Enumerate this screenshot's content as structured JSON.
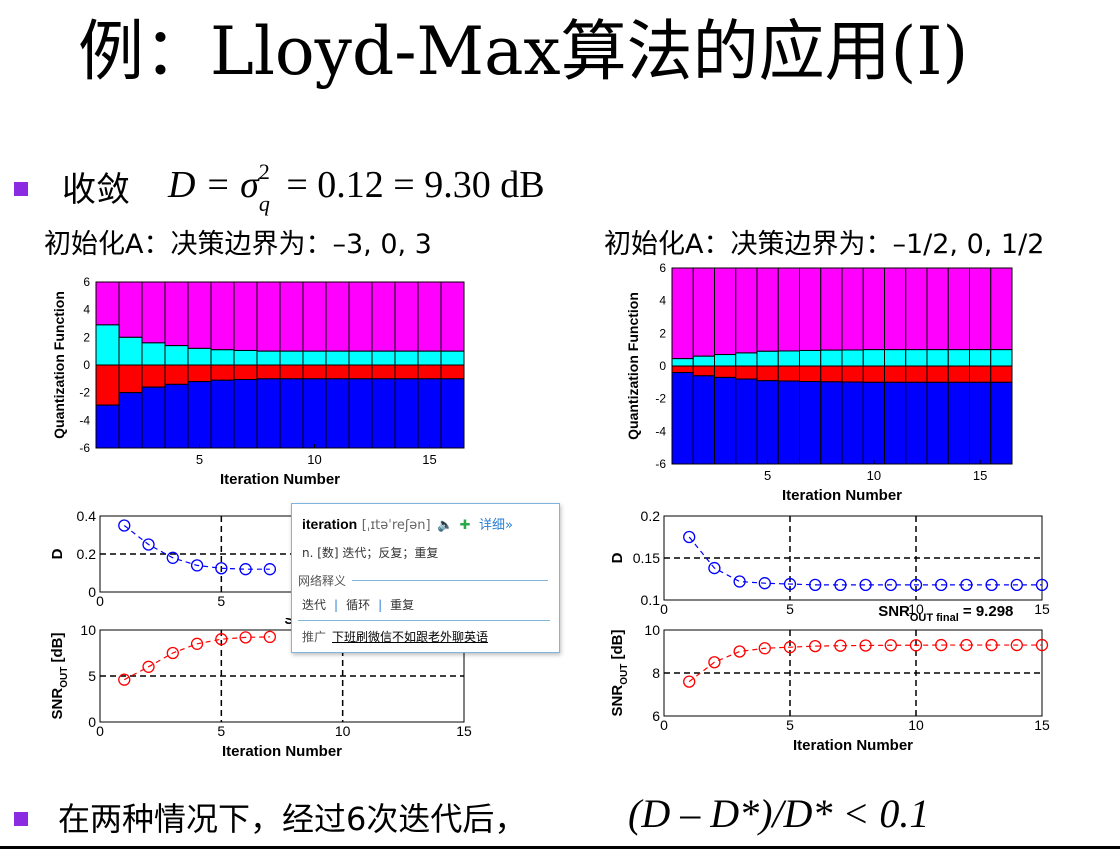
{
  "slide": {
    "title": "例：Lloyd-Max算法的应用(I)",
    "bullet1_prefix": "收敛",
    "bullet1_formula": "D = σ",
    "bullet1_rest": " = 0.12 = 9.30 dB",
    "bullet1_sup": "2",
    "bullet1_sub": "q",
    "left_caption": "初始化A：决策边界为：–3, 0, 3",
    "right_caption": "初始化A：决策边界为：–1/2, 0, 1/2",
    "bullet2_text": "在两种情况下，经过6次迭代后，",
    "bullet2_formula": "(D – D*)/D* < 0.1"
  },
  "colors": {
    "magenta": "#ff00ff",
    "cyan": "#00ffff",
    "red": "#ff0000",
    "blue": "#0000ff",
    "bullet": "#8a2be2"
  },
  "chart_data": [
    {
      "type": "stacked-bar",
      "name": "left-quantization",
      "ylabel": "Quantization Function",
      "xlabel": "Iteration Number",
      "xticks": [
        "5",
        "10",
        "15"
      ],
      "yticks": [
        "6",
        "4",
        "2",
        "0",
        "-2",
        "-4",
        "-6"
      ],
      "ylim": [
        -6,
        6
      ],
      "iterations": 16,
      "levels_top": [
        6,
        6,
        6,
        6,
        6,
        6,
        6,
        6,
        6,
        6,
        6,
        6,
        6,
        6,
        6,
        6
      ],
      "levels_upper": [
        2.9,
        2.0,
        1.6,
        1.4,
        1.2,
        1.1,
        1.05,
        1.0,
        1.0,
        1.0,
        1.0,
        1.0,
        1.0,
        1.0,
        1.0,
        1.0
      ],
      "levels_lower": [
        -2.9,
        -2.0,
        -1.6,
        -1.4,
        -1.2,
        -1.1,
        -1.05,
        -1.0,
        -1.0,
        -1.0,
        -1.0,
        -1.0,
        -1.0,
        -1.0,
        -1.0,
        -1.0
      ],
      "levels_bottom": [
        -6,
        -6,
        -6,
        -6,
        -6,
        -6,
        -6,
        -6,
        -6,
        -6,
        -6,
        -6,
        -6,
        -6,
        -6,
        -6
      ]
    },
    {
      "type": "stacked-bar",
      "name": "right-quantization",
      "ylabel": "Quantization Function",
      "xlabel": "Iteration Number",
      "xticks": [
        "5",
        "10",
        "15"
      ],
      "yticks": [
        "6",
        "4",
        "2",
        "0",
        "-2",
        "-4",
        "-6"
      ],
      "ylim": [
        -6,
        6
      ],
      "iterations": 16,
      "levels_upper": [
        0.45,
        0.6,
        0.7,
        0.8,
        0.9,
        0.92,
        0.95,
        0.97,
        0.98,
        1.0,
        1.0,
        1.0,
        1.0,
        1.0,
        1.0,
        1.0
      ],
      "levels_lower": [
        -0.45,
        -0.6,
        -0.7,
        -0.8,
        -0.9,
        -0.92,
        -0.95,
        -0.97,
        -0.98,
        -1.0,
        -1.0,
        -1.0,
        -1.0,
        -1.0,
        -1.0,
        -1.0
      ],
      "levels_mid": [
        -0.4,
        -0.6,
        -0.7,
        -0.8,
        -0.9,
        -0.92,
        -0.95,
        -0.97,
        -0.98,
        -1.0,
        -1.0,
        -1.0,
        -1.0,
        -1.0,
        -1.0,
        -1.0
      ]
    },
    {
      "type": "line",
      "name": "left-D",
      "ylabel": "D",
      "xticks": [
        "0",
        "5"
      ],
      "yticks": [
        "0.4",
        "0.2",
        "0"
      ],
      "ylim": [
        0,
        0.4
      ],
      "xlim": [
        0,
        15
      ],
      "x": [
        1,
        2,
        3,
        4,
        5,
        6,
        7
      ],
      "values": [
        0.35,
        0.25,
        0.18,
        0.14,
        0.125,
        0.12,
        0.12
      ]
    },
    {
      "type": "line",
      "name": "left-SNR",
      "ylabel": "SNR",
      "ylabel_sub": "OUT",
      "ylabel_unit": "[dB]",
      "xlabel": "Iteration Number",
      "xticks": [
        "0",
        "5",
        "10",
        "15"
      ],
      "yticks": [
        "10",
        "5",
        "0"
      ],
      "ylim": [
        0,
        10
      ],
      "xlim": [
        0,
        15
      ],
      "x": [
        1,
        2,
        3,
        4,
        5,
        6,
        7
      ],
      "values": [
        4.6,
        6.0,
        7.5,
        8.5,
        9.0,
        9.2,
        9.25
      ],
      "snr_prefix": "SN"
    },
    {
      "type": "line",
      "name": "right-D",
      "ylabel": "D",
      "xticks": [
        "0",
        "5",
        "10",
        "15"
      ],
      "yticks": [
        "0.2",
        "0.15",
        "0.1"
      ],
      "ylim": [
        0.1,
        0.2
      ],
      "xlim": [
        0,
        15
      ],
      "x": [
        1,
        2,
        3,
        4,
        5,
        6,
        7,
        8,
        9,
        10,
        11,
        12,
        13,
        14,
        15
      ],
      "values": [
        0.175,
        0.138,
        0.122,
        0.12,
        0.119,
        0.118,
        0.118,
        0.118,
        0.118,
        0.118,
        0.118,
        0.118,
        0.118,
        0.118,
        0.118
      ],
      "annotation_prefix": "SNR",
      "annotation_sub": "OUT final",
      "annotation_value": "= 9.298"
    },
    {
      "type": "line",
      "name": "right-SNR",
      "ylabel": "SNR",
      "ylabel_sub": "OUT",
      "ylabel_unit": "[dB]",
      "xlabel": "Iteration Number",
      "xticks": [
        "0",
        "5",
        "10",
        "15"
      ],
      "yticks": [
        "10",
        "8",
        "6"
      ],
      "ylim": [
        6,
        10
      ],
      "xlim": [
        0,
        15
      ],
      "x": [
        1,
        2,
        3,
        4,
        5,
        6,
        7,
        8,
        9,
        10,
        11,
        12,
        13,
        14,
        15
      ],
      "values": [
        7.6,
        8.5,
        9.0,
        9.15,
        9.2,
        9.25,
        9.27,
        9.28,
        9.29,
        9.29,
        9.3,
        9.3,
        9.3,
        9.3,
        9.3
      ]
    }
  ],
  "popup": {
    "word": "iteration",
    "phonetic": "[ˌɪtəˈreʃən]",
    "speaker_icon": "speaker-icon",
    "add_icon": "add-wordbook-icon",
    "detail_label": "详细»",
    "definition": "n. [数] 迭代；反复；重复",
    "web_section": "网络释义",
    "web_items": [
      "迭代",
      "循环",
      "重复"
    ],
    "ad_prefix": "推广",
    "ad_link": "下班刷微信不如跟老外聊英语"
  }
}
